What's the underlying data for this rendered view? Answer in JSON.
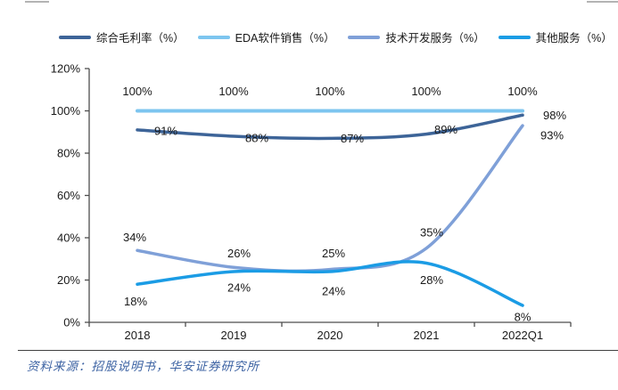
{
  "chart_data": {
    "type": "line",
    "title": "",
    "categories": [
      "2018",
      "2019",
      "2020",
      "2021",
      "2022Q1"
    ],
    "series": [
      {
        "name": "综合毛利率（%）",
        "color": "#3D6498",
        "values": [
          91,
          88,
          87,
          89,
          98
        ]
      },
      {
        "name": "EDA软件销售（%）",
        "color": "#7DC5EF",
        "values": [
          100,
          100,
          100,
          100,
          100
        ]
      },
      {
        "name": "技术开发服务（%）",
        "color": "#7FA0D8",
        "values": [
          34,
          26,
          25,
          35,
          93
        ]
      },
      {
        "name": "其他服务（%）",
        "color": "#1B9CE5",
        "values": [
          18,
          24,
          24,
          28,
          8
        ]
      }
    ],
    "ylim": [
      0,
      120
    ],
    "ytick_step": 20,
    "yticks": [
      "0%",
      "20%",
      "40%",
      "60%",
      "80%",
      "100%",
      "120%"
    ],
    "grid": false,
    "legend_position": "top",
    "data_labels": true,
    "axis_color": "#4d4d4d",
    "label_color": "#1a1a1a"
  },
  "footer": {
    "source": "资料来源：招股说明书，华安证券研究所"
  }
}
